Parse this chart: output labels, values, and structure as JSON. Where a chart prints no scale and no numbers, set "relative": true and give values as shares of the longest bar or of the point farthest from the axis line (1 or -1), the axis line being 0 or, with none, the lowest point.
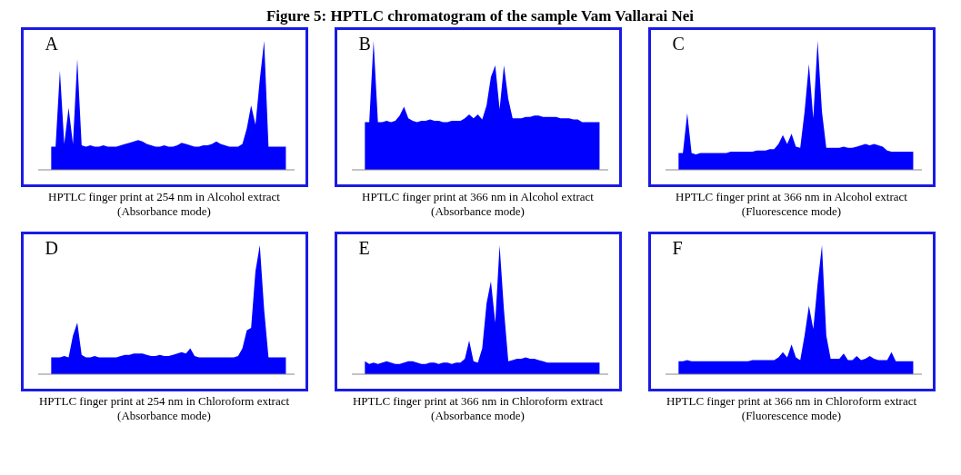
{
  "chart_data": [
    {
      "type": "area",
      "title": "A",
      "xlabel": "HPTLC finger print at 254 nm in Alcohol extract (Absorbance mode)",
      "annotations": [
        "Figure 5: HPTLC chromatogram of the sample Vam Vallarai Nei"
      ],
      "relative": true,
      "tick_labels": false,
      "color": "#0000ff",
      "categories": [
        null,
        null,
        null,
        null,
        null,
        null,
        null,
        null,
        null,
        null,
        null,
        null,
        null,
        null,
        null,
        null,
        null,
        null,
        null,
        null,
        null,
        null,
        null,
        null,
        null,
        null,
        null,
        null,
        null,
        null,
        null,
        null,
        null,
        null,
        null,
        null,
        null,
        null,
        null,
        null,
        null,
        null,
        null,
        null,
        null,
        null,
        null,
        null,
        null,
        null,
        null,
        null,
        null,
        null,
        null,
        null,
        null,
        null,
        null,
        null
      ],
      "values": [
        null,
        null,
        null,
        0.18,
        0.18,
        0.77,
        0.2,
        0.48,
        0.2,
        0.86,
        0.19,
        0.18,
        0.19,
        0.18,
        0.18,
        0.19,
        0.18,
        0.18,
        0.18,
        0.19,
        0.2,
        0.21,
        0.22,
        0.23,
        0.22,
        0.2,
        0.19,
        0.18,
        0.18,
        0.19,
        0.18,
        0.18,
        0.19,
        0.21,
        0.2,
        0.19,
        0.18,
        0.18,
        0.19,
        0.19,
        0.2,
        0.22,
        0.2,
        0.19,
        0.18,
        0.18,
        0.18,
        0.2,
        0.32,
        0.5,
        0.35,
        0.7,
        1,
        0.18,
        0.18,
        0.18,
        0.18,
        0.18,
        null,
        null
      ]
    },
    {
      "type": "area",
      "title": "B",
      "xlabel": "HPTLC finger print at 366 nm in Alcohol extract (Absorbance mode)",
      "relative": true,
      "tick_labels": false,
      "color": "#0000ff",
      "categories": [
        null,
        null,
        null,
        null,
        null,
        null,
        null,
        null,
        null,
        null,
        null,
        null,
        null,
        null,
        null,
        null,
        null,
        null,
        null,
        null,
        null,
        null,
        null,
        null,
        null,
        null,
        null,
        null,
        null,
        null,
        null,
        null,
        null,
        null,
        null,
        null,
        null,
        null,
        null,
        null,
        null,
        null,
        null,
        null,
        null,
        null,
        null,
        null,
        null,
        null,
        null,
        null,
        null,
        null,
        null,
        null,
        null,
        null,
        null,
        null
      ],
      "values": [
        null,
        null,
        null,
        0.37,
        0.37,
        1,
        0.37,
        0.37,
        0.38,
        0.37,
        0.38,
        0.42,
        0.49,
        0.4,
        0.38,
        0.37,
        0.38,
        0.38,
        0.39,
        0.38,
        0.38,
        0.37,
        0.37,
        0.38,
        0.38,
        0.38,
        0.4,
        0.43,
        0.4,
        0.43,
        0.39,
        0.5,
        0.72,
        0.81,
        0.47,
        0.81,
        0.55,
        0.4,
        0.4,
        0.4,
        0.41,
        0.41,
        0.42,
        0.42,
        0.41,
        0.41,
        0.41,
        0.41,
        0.4,
        0.4,
        0.4,
        0.39,
        0.39,
        0.37,
        0.37,
        0.37,
        0.37,
        0.37,
        null,
        null
      ]
    },
    {
      "type": "area",
      "title": "C",
      "xlabel": "HPTLC finger print at 366 nm in Alcohol extract (Fluorescence mode)",
      "relative": true,
      "tick_labels": false,
      "color": "#0000ff",
      "categories": [
        null,
        null,
        null,
        null,
        null,
        null,
        null,
        null,
        null,
        null,
        null,
        null,
        null,
        null,
        null,
        null,
        null,
        null,
        null,
        null,
        null,
        null,
        null,
        null,
        null,
        null,
        null,
        null,
        null,
        null,
        null,
        null,
        null,
        null,
        null,
        null,
        null,
        null,
        null,
        null,
        null,
        null,
        null,
        null,
        null,
        null,
        null,
        null,
        null,
        null,
        null,
        null,
        null,
        null,
        null,
        null,
        null,
        null,
        null,
        null
      ],
      "values": [
        null,
        null,
        null,
        0.13,
        0.13,
        0.44,
        0.13,
        0.12,
        0.13,
        0.13,
        0.13,
        0.13,
        0.13,
        0.13,
        0.13,
        0.14,
        0.14,
        0.14,
        0.14,
        0.14,
        0.14,
        0.15,
        0.15,
        0.15,
        0.16,
        0.16,
        0.2,
        0.27,
        0.2,
        0.28,
        0.18,
        0.17,
        0.45,
        0.82,
        0.4,
        1,
        0.45,
        0.17,
        0.17,
        0.17,
        0.17,
        0.18,
        0.17,
        0.17,
        0.18,
        0.19,
        0.2,
        0.19,
        0.2,
        0.19,
        0.18,
        0.15,
        0.14,
        0.14,
        0.14,
        0.14,
        0.14,
        0.14,
        null,
        null
      ]
    },
    {
      "type": "area",
      "title": "D",
      "xlabel": "HPTLC finger print at 254 nm in Chloroform extract (Absorbance mode)",
      "relative": true,
      "tick_labels": false,
      "color": "#0000ff",
      "categories": [
        null,
        null,
        null,
        null,
        null,
        null,
        null,
        null,
        null,
        null,
        null,
        null,
        null,
        null,
        null,
        null,
        null,
        null,
        null,
        null,
        null,
        null,
        null,
        null,
        null,
        null,
        null,
        null,
        null,
        null,
        null,
        null,
        null,
        null,
        null,
        null,
        null,
        null,
        null,
        null,
        null,
        null,
        null,
        null,
        null,
        null,
        null,
        null,
        null,
        null,
        null,
        null,
        null,
        null,
        null,
        null,
        null,
        null,
        null,
        null
      ],
      "values": [
        null,
        null,
        null,
        0.13,
        0.13,
        0.13,
        0.14,
        0.13,
        0.3,
        0.4,
        0.15,
        0.13,
        0.13,
        0.14,
        0.13,
        0.13,
        0.13,
        0.13,
        0.13,
        0.14,
        0.15,
        0.15,
        0.16,
        0.16,
        0.16,
        0.15,
        0.14,
        0.14,
        0.15,
        0.14,
        0.14,
        0.15,
        0.16,
        0.17,
        0.16,
        0.2,
        0.14,
        0.13,
        0.13,
        0.13,
        0.13,
        0.13,
        0.13,
        0.13,
        0.13,
        0.13,
        0.14,
        0.2,
        0.34,
        0.36,
        0.8,
        1,
        0.5,
        0.13,
        0.13,
        0.13,
        0.13,
        0.13,
        null,
        null
      ]
    },
    {
      "type": "area",
      "title": "E",
      "xlabel": "HPTLC finger print at 366 nm in Chloroform extract (Absorbance mode)",
      "relative": true,
      "tick_labels": false,
      "color": "#0000ff",
      "categories": [
        null,
        null,
        null,
        null,
        null,
        null,
        null,
        null,
        null,
        null,
        null,
        null,
        null,
        null,
        null,
        null,
        null,
        null,
        null,
        null,
        null,
        null,
        null,
        null,
        null,
        null,
        null,
        null,
        null,
        null,
        null,
        null,
        null,
        null,
        null,
        null,
        null,
        null,
        null,
        null,
        null,
        null,
        null,
        null,
        null,
        null,
        null,
        null,
        null,
        null,
        null,
        null,
        null,
        null,
        null,
        null,
        null,
        null,
        null,
        null
      ],
      "values": [
        null,
        null,
        null,
        0.1,
        0.08,
        0.09,
        0.08,
        0.09,
        0.1,
        0.09,
        0.08,
        0.08,
        0.09,
        0.1,
        0.1,
        0.09,
        0.08,
        0.08,
        0.09,
        0.09,
        0.08,
        0.09,
        0.09,
        0.08,
        0.09,
        0.09,
        0.12,
        0.26,
        0.1,
        0.09,
        0.2,
        0.55,
        0.72,
        0.4,
        1,
        0.5,
        0.1,
        0.11,
        0.12,
        0.12,
        0.13,
        0.12,
        0.12,
        0.11,
        0.1,
        0.09,
        0.09,
        0.09,
        0.09,
        0.09,
        0.09,
        0.09,
        0.09,
        0.09,
        0.09,
        0.09,
        0.09,
        0.09,
        null,
        null
      ]
    },
    {
      "type": "area",
      "title": "F",
      "xlabel": "HPTLC finger print at 366 nm in Chloroform extract (Fluorescence mode)",
      "relative": true,
      "tick_labels": false,
      "color": "#0000ff",
      "categories": [
        null,
        null,
        null,
        null,
        null,
        null,
        null,
        null,
        null,
        null,
        null,
        null,
        null,
        null,
        null,
        null,
        null,
        null,
        null,
        null,
        null,
        null,
        null,
        null,
        null,
        null,
        null,
        null,
        null,
        null,
        null,
        null,
        null,
        null,
        null,
        null,
        null,
        null,
        null,
        null,
        null,
        null,
        null,
        null,
        null,
        null,
        null,
        null,
        null,
        null,
        null,
        null,
        null,
        null,
        null,
        null,
        null,
        null,
        null,
        null
      ],
      "values": [
        null,
        null,
        null,
        0.1,
        0.1,
        0.11,
        0.1,
        0.1,
        0.1,
        0.1,
        0.1,
        0.1,
        0.1,
        0.1,
        0.1,
        0.1,
        0.1,
        0.1,
        0.1,
        0.1,
        0.11,
        0.11,
        0.11,
        0.11,
        0.11,
        0.11,
        0.13,
        0.17,
        0.13,
        0.23,
        0.13,
        0.11,
        0.3,
        0.53,
        0.35,
        0.7,
        1,
        0.3,
        0.12,
        0.12,
        0.12,
        0.16,
        0.11,
        0.11,
        0.14,
        0.11,
        0.12,
        0.14,
        0.12,
        0.11,
        0.11,
        0.11,
        0.17,
        0.1,
        0.1,
        0.1,
        0.1,
        0.1,
        null,
        null
      ]
    }
  ]
}
